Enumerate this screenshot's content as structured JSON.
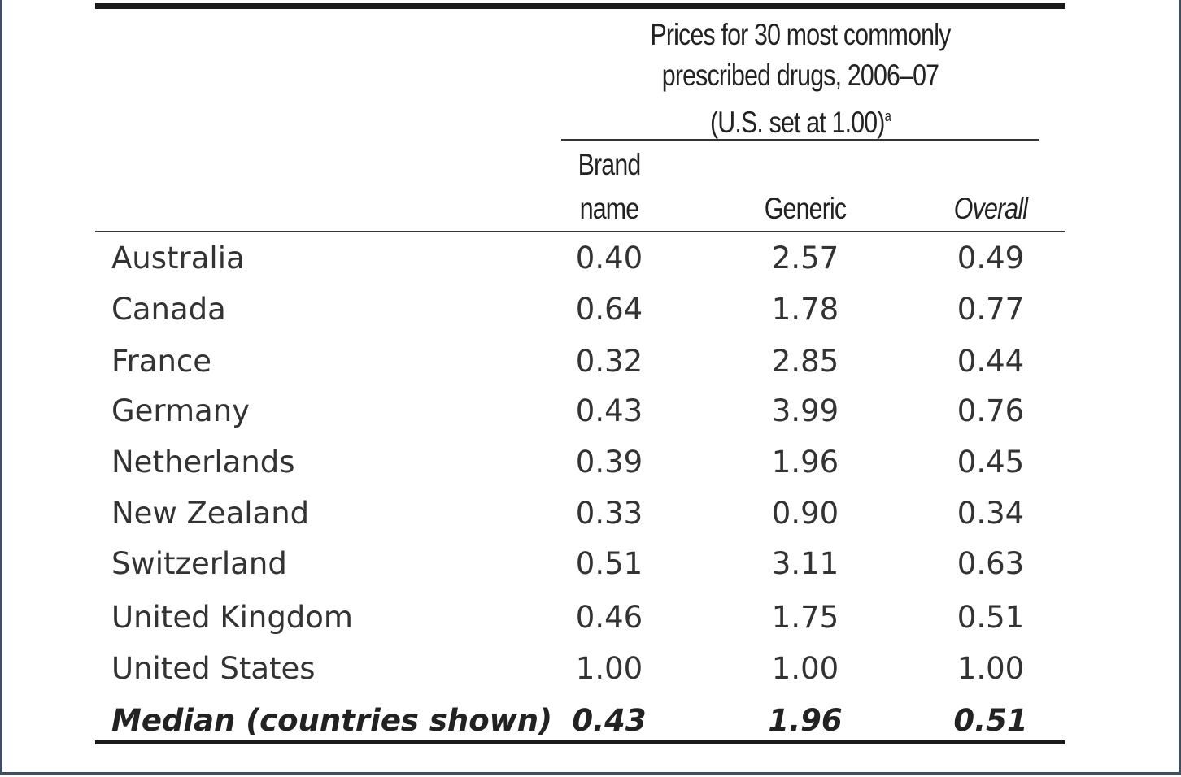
{
  "table": {
    "group_header_lines": [
      "Prices for 30 most commonly",
      "prescribed drugs, 2006–07",
      "(U.S. set at 1.00)"
    ],
    "group_header_footnote": "a",
    "columns": [
      {
        "line1": "Brand",
        "line2": "name"
      },
      {
        "line1": "",
        "line2": "Generic"
      },
      {
        "line1": "",
        "line2": "Overall"
      }
    ],
    "rows": [
      {
        "country": "Australia",
        "brand": "0.40",
        "generic": "2.57",
        "overall": "0.49"
      },
      {
        "country": "Canada",
        "brand": "0.64",
        "generic": "1.78",
        "overall": "0.77"
      },
      {
        "country": "France",
        "brand": "0.32",
        "generic": "2.85",
        "overall": "0.44"
      },
      {
        "country": "Germany",
        "brand": "0.43",
        "generic": "3.99",
        "overall": "0.76"
      },
      {
        "country": "Netherlands",
        "brand": "0.39",
        "generic": "1.96",
        "overall": "0.45"
      },
      {
        "country": "New Zealand",
        "brand": "0.33",
        "generic": "0.90",
        "overall": "0.34"
      },
      {
        "country": "Switzerland",
        "brand": "0.51",
        "generic": "3.11",
        "overall": "0.63"
      },
      {
        "country": "United Kingdom",
        "brand": "0.46",
        "generic": "1.75",
        "overall": "0.51"
      },
      {
        "country": "United States",
        "brand": "1.00",
        "generic": "1.00",
        "overall": "1.00"
      }
    ],
    "median": {
      "country": "Median (countries shown)",
      "brand": "0.43",
      "generic": "1.96",
      "overall": "0.51"
    }
  }
}
